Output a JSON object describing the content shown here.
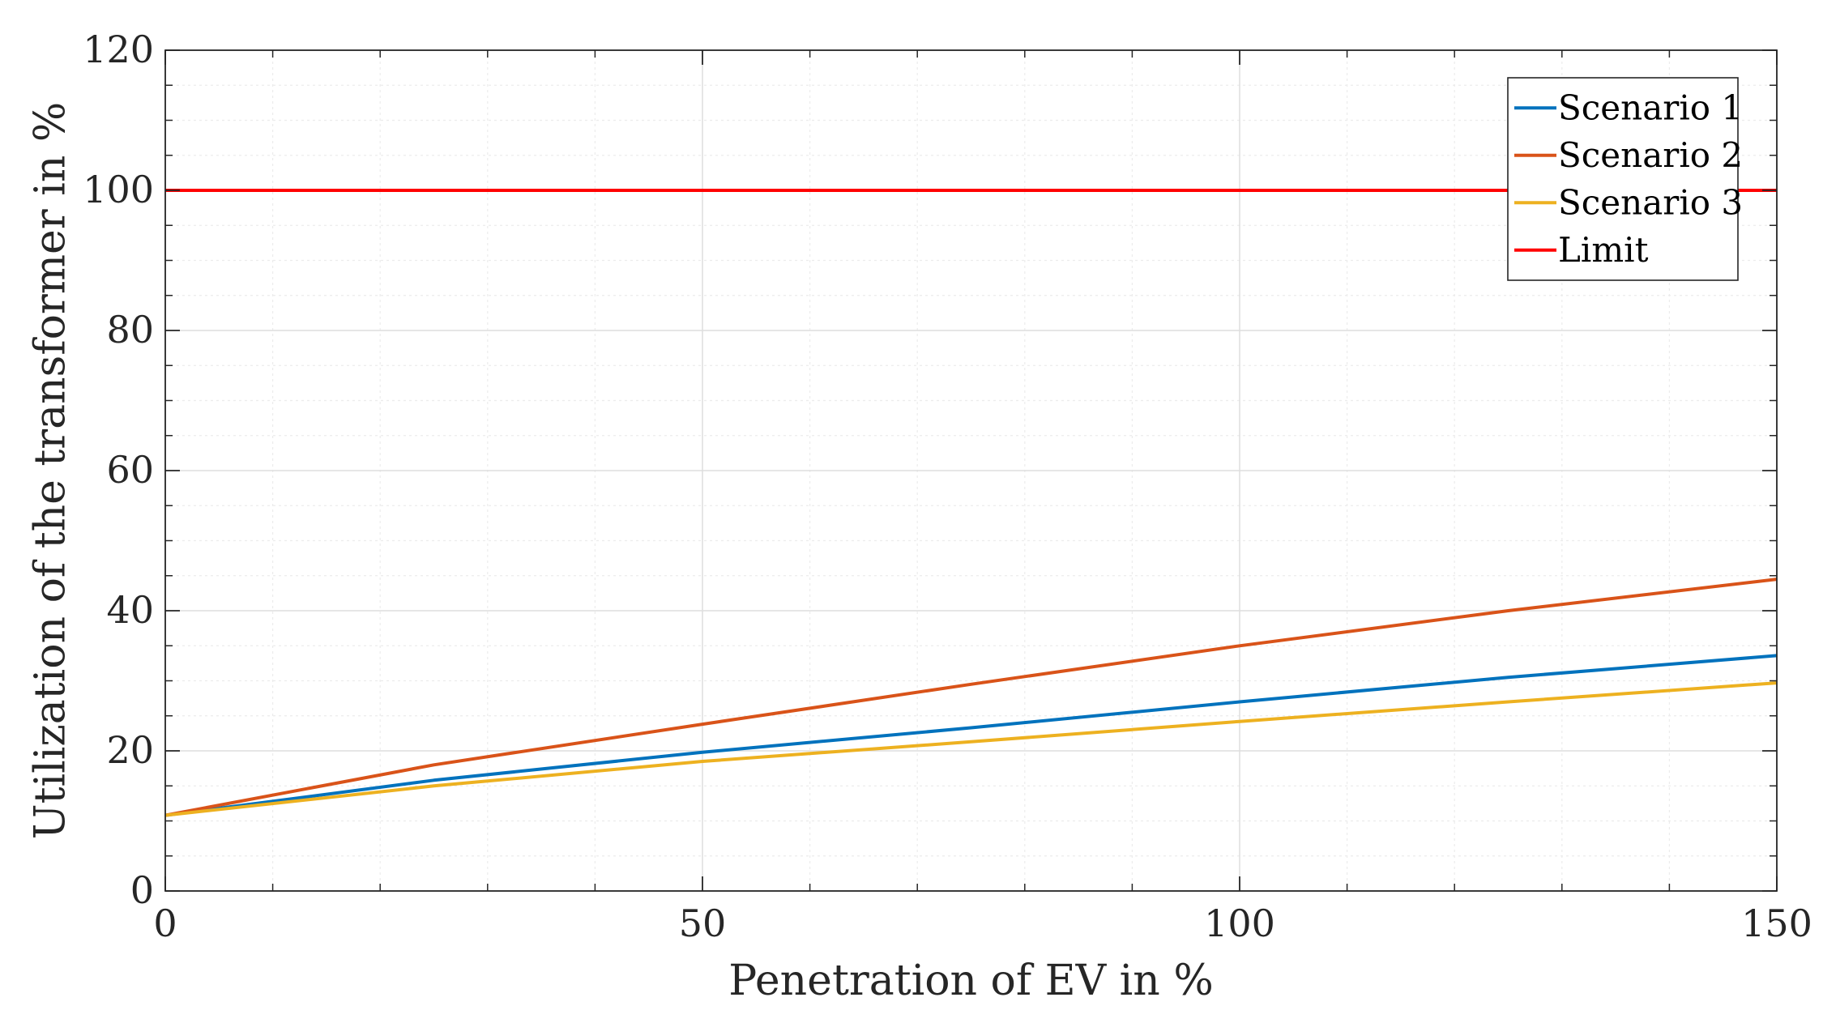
{
  "chart_data": {
    "type": "line",
    "title": "",
    "xlabel": "Penetration of EV in %",
    "ylabel": "Utilization of the transformer in %",
    "xlim": [
      0,
      150
    ],
    "ylim": [
      0,
      120
    ],
    "xticks": [
      0,
      50,
      100,
      150
    ],
    "yticks": [
      0,
      20,
      40,
      60,
      80,
      100,
      120
    ],
    "xtick_labels": [
      "0",
      "50",
      "100",
      "150"
    ],
    "ytick_labels": [
      "0",
      "20",
      "40",
      "60",
      "80",
      "100",
      "120"
    ],
    "grid": true,
    "minor_grid": true,
    "legend_position": "top-right",
    "x": [
      0,
      25,
      50,
      75,
      100,
      125,
      150
    ],
    "series": [
      {
        "name": "Scenario 1",
        "color": "#0072BD",
        "values": [
          10.8,
          15.8,
          19.8,
          23.3,
          27.0,
          30.5,
          33.6
        ]
      },
      {
        "name": "Scenario 2",
        "color": "#D95319",
        "values": [
          10.8,
          18.0,
          23.8,
          29.5,
          35.0,
          40.0,
          44.5
        ]
      },
      {
        "name": "Scenario 3",
        "color": "#EDB120",
        "values": [
          10.8,
          15.0,
          18.5,
          21.3,
          24.2,
          27.0,
          29.7
        ]
      },
      {
        "name": "Limit",
        "color": "#FF0000",
        "values": [
          100,
          100,
          100,
          100,
          100,
          100,
          100
        ]
      }
    ]
  }
}
